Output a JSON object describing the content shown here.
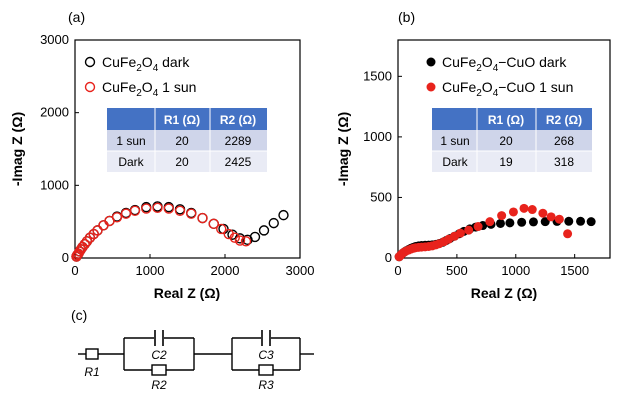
{
  "panels": {
    "a": "(a)",
    "b": "(b)",
    "c": "(c)"
  },
  "chart_data": [
    {
      "type": "scatter",
      "panel": "(a)",
      "xlabel": "Real Z (Ω)",
      "ylabel": "-Imag Z (Ω)",
      "xlim": [
        0,
        3000
      ],
      "ylim": [
        0,
        3000
      ],
      "xticks": [
        "0",
        "1000",
        "2000",
        "3000"
      ],
      "yticks": [
        "0",
        "1000",
        "2000",
        "3000"
      ],
      "legend_position": "top-left",
      "series": [
        {
          "name_base": "CuFe",
          "name_sub1": "2",
          "name_mid": "O",
          "name_sub2": "4",
          "name_tail": " dark",
          "color": "#000000",
          "marker": "open-circle",
          "x": [
            20,
            30,
            45,
            60,
            80,
            100,
            130,
            160,
            200,
            250,
            300,
            380,
            460,
            560,
            680,
            800,
            950,
            1100,
            1250,
            1400,
            1550,
            1700,
            1850,
            1980,
            2100,
            2200,
            2300,
            2400,
            2520,
            2650,
            2780
          ],
          "y": [
            20,
            40,
            60,
            90,
            120,
            150,
            190,
            230,
            280,
            330,
            380,
            450,
            510,
            570,
            620,
            660,
            700,
            710,
            700,
            670,
            620,
            550,
            470,
            400,
            320,
            270,
            250,
            290,
            380,
            480,
            590
          ]
        },
        {
          "name_base": "CuFe",
          "name_sub1": "2",
          "name_mid": "O",
          "name_sub2": "4",
          "name_tail": " 1 sun",
          "color": "#e8231c",
          "marker": "open-circle",
          "x": [
            20,
            30,
            45,
            60,
            80,
            100,
            130,
            160,
            200,
            250,
            300,
            380,
            460,
            560,
            680,
            800,
            950,
            1100,
            1250,
            1400,
            1550,
            1700,
            1850,
            1950,
            2050,
            2130,
            2200,
            2280
          ],
          "y": [
            20,
            40,
            60,
            90,
            120,
            150,
            190,
            230,
            280,
            330,
            380,
            450,
            510,
            560,
            610,
            650,
            680,
            690,
            680,
            650,
            610,
            550,
            470,
            400,
            330,
            280,
            240,
            230
          ]
        }
      ],
      "table": {
        "headers": [
          "",
          "R1 (Ω)",
          "R2 (Ω)"
        ],
        "rows": [
          [
            "1 sun",
            "20",
            "2289"
          ],
          [
            "Dark",
            "20",
            "2425"
          ]
        ]
      }
    },
    {
      "type": "scatter",
      "panel": "(b)",
      "xlabel": "Real Z (Ω)",
      "ylabel": "-Imag Z (Ω)",
      "xlim": [
        0,
        1800
      ],
      "ylim": [
        0,
        1800
      ],
      "xticks": [
        "0",
        "500",
        "1000",
        "1500"
      ],
      "yticks": [
        "0",
        "500",
        "1000",
        "1500"
      ],
      "legend_position": "top-left",
      "series": [
        {
          "name_base": "CuFe",
          "name_sub1": "2",
          "name_mid": "O",
          "name_sub2": "4",
          "name_tail": "−CuO dark",
          "color": "#000000",
          "marker": "filled-circle",
          "x": [
            10,
            20,
            30,
            40,
            55,
            70,
            90,
            110,
            130,
            150,
            175,
            200,
            230,
            260,
            290,
            320,
            350,
            380,
            410,
            440,
            480,
            520,
            560,
            610,
            660,
            720,
            790,
            870,
            950,
            1050,
            1150,
            1250,
            1350,
            1450,
            1550,
            1640
          ],
          "y": [
            10,
            20,
            30,
            40,
            50,
            60,
            70,
            80,
            88,
            95,
            100,
            103,
            105,
            106,
            108,
            112,
            120,
            130,
            145,
            160,
            180,
            200,
            220,
            240,
            255,
            268,
            278,
            285,
            290,
            295,
            298,
            300,
            302,
            303,
            303,
            300
          ]
        },
        {
          "name_base": "CuFe",
          "name_sub1": "2",
          "name_mid": "O",
          "name_sub2": "4",
          "name_tail": "−CuO 1 sun",
          "color": "#e8231c",
          "marker": "filled-circle",
          "x": [
            10,
            20,
            30,
            40,
            55,
            70,
            90,
            110,
            130,
            150,
            175,
            200,
            230,
            260,
            290,
            320,
            350,
            390,
            430,
            480,
            530,
            600,
            680,
            780,
            880,
            980,
            1070,
            1140,
            1230,
            1300,
            1370,
            1440
          ],
          "y": [
            10,
            20,
            30,
            40,
            50,
            58,
            66,
            74,
            80,
            85,
            88,
            90,
            92,
            95,
            100,
            108,
            118,
            135,
            155,
            180,
            205,
            230,
            260,
            300,
            350,
            380,
            410,
            400,
            370,
            340,
            320,
            200
          ]
        }
      ],
      "table": {
        "headers": [
          "",
          "R1 (Ω)",
          "R2 (Ω)"
        ],
        "rows": [
          [
            "1 sun",
            "20",
            "268"
          ],
          [
            "Dark",
            "19",
            "318"
          ]
        ]
      }
    }
  ],
  "circuit": {
    "labels": {
      "r1": "R1",
      "r2": "R2",
      "r3": "R3",
      "c2": "C2",
      "c3": "C3"
    }
  }
}
